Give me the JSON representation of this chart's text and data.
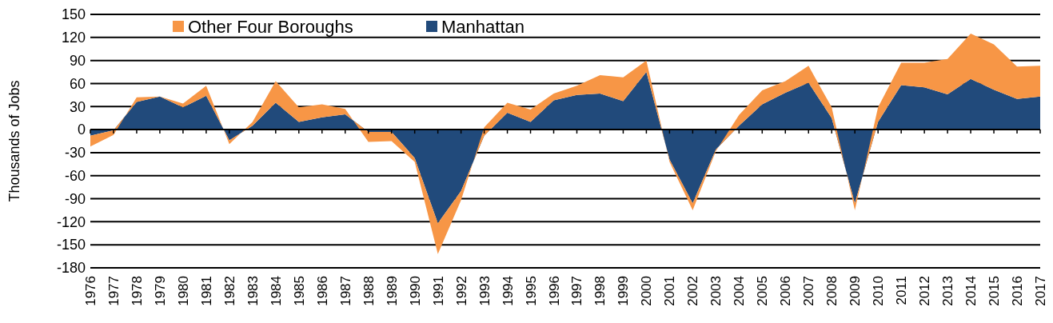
{
  "chart_data": {
    "type": "area",
    "stacked": true,
    "ylabel": "Thousands of Jobs",
    "categories": [
      "1976",
      "1977",
      "1978",
      "1979",
      "1980",
      "1981",
      "1982",
      "1983",
      "1984",
      "1985",
      "1986",
      "1987",
      "1988",
      "1989",
      "1990",
      "1991",
      "1992",
      "1993",
      "1994",
      "1995",
      "1996",
      "1997",
      "1998",
      "1999",
      "2000",
      "2001",
      "2002",
      "2003",
      "2004",
      "2005",
      "2006",
      "2007",
      "2008",
      "2009",
      "2010",
      "2011",
      "2012",
      "2013",
      "2014",
      "2015",
      "2016",
      "2017"
    ],
    "series": [
      {
        "name": "Manhattan",
        "color": "#214a7b",
        "values": [
          -8,
          -1,
          36,
          43,
          29,
          44,
          -14,
          5,
          35,
          10,
          16,
          20,
          -3,
          -3,
          -37,
          -122,
          -80,
          -8,
          22,
          10,
          38,
          45,
          47,
          37,
          75,
          -39,
          -96,
          -26,
          5,
          33,
          48,
          61,
          15,
          -96,
          10,
          58,
          55,
          46,
          66,
          52,
          40,
          43
        ]
      },
      {
        "name": "Other Four Boroughs",
        "color": "#f79646",
        "values": [
          -14,
          -6,
          6,
          0,
          5,
          13,
          -5,
          5,
          28,
          19,
          17,
          7,
          -13,
          -12,
          -5,
          -40,
          -12,
          11,
          13,
          16,
          9,
          12,
          24,
          31,
          15,
          -3,
          -9,
          -2,
          14,
          18,
          15,
          22,
          14,
          -9,
          19,
          29,
          32,
          46,
          59,
          59,
          42,
          40
        ]
      }
    ],
    "ylim": [
      -180,
      150
    ],
    "yticks": [
      -180,
      -150,
      -120,
      -90,
      -60,
      -30,
      0,
      30,
      60,
      90,
      120,
      150
    ],
    "grid": "y",
    "legend": "top left"
  }
}
